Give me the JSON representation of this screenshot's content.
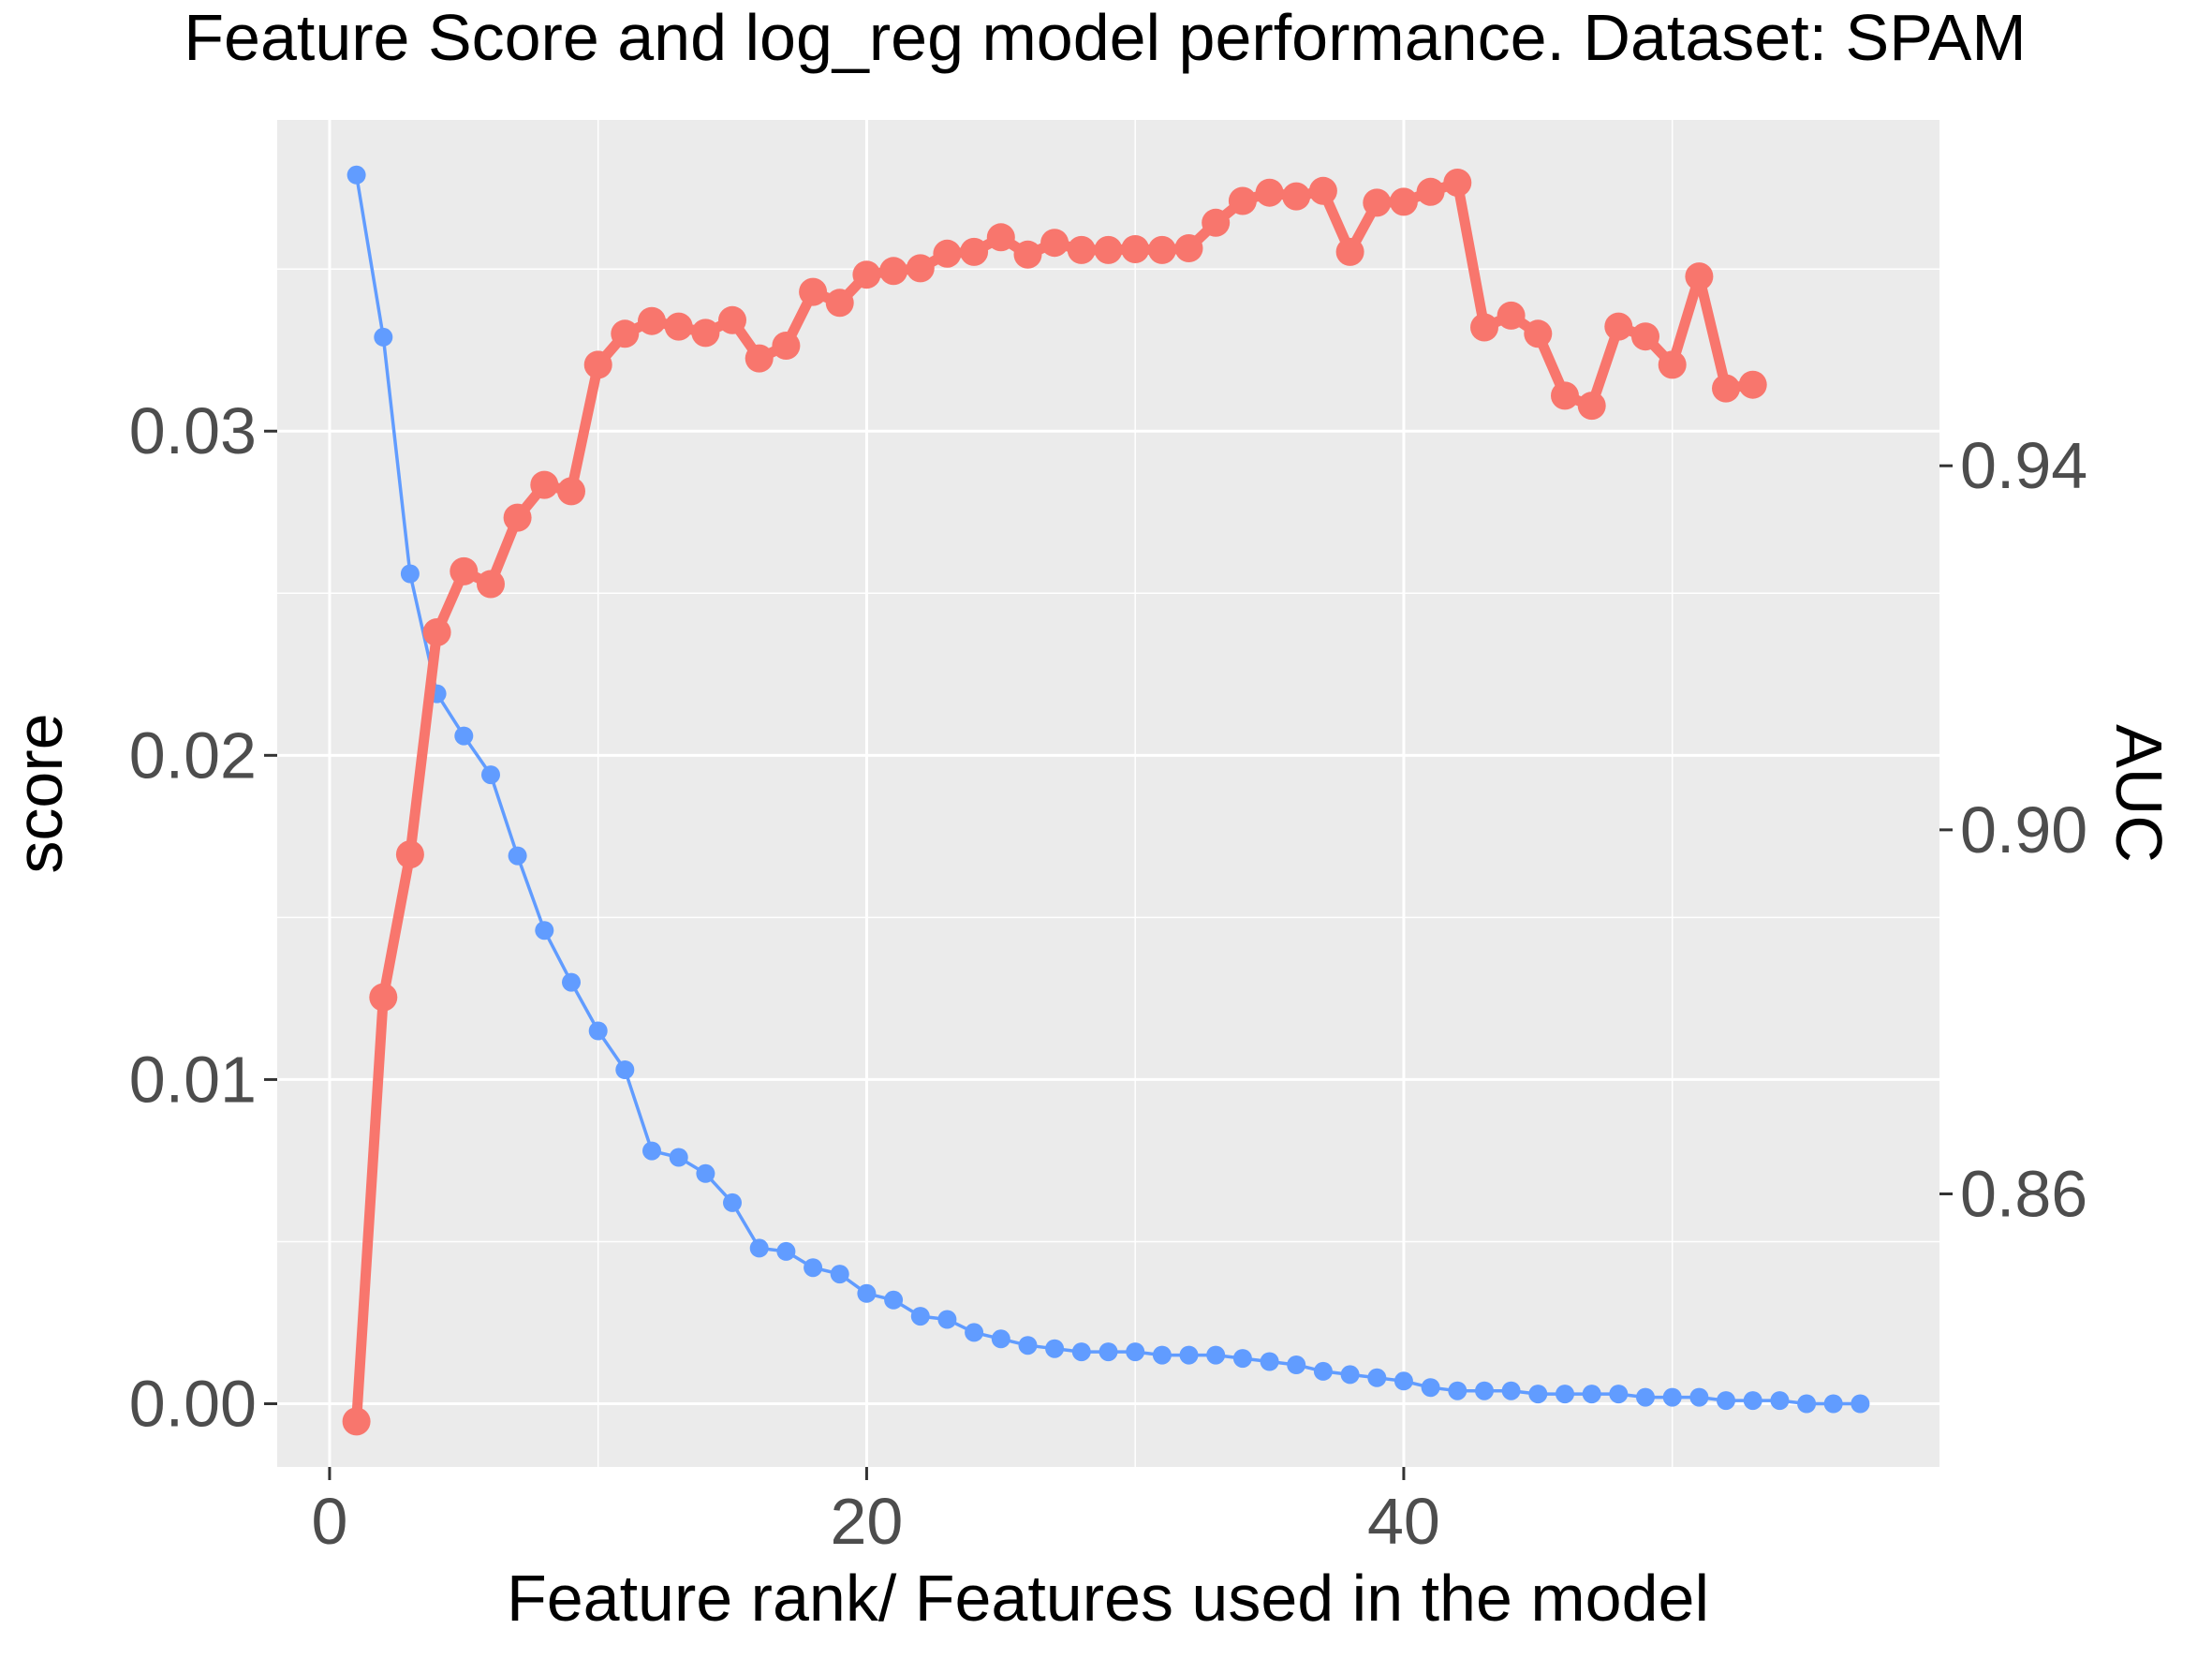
{
  "chart_data": {
    "type": "line",
    "title": "Feature Score and log_reg model performance. Dataset: SPAM",
    "xlabel": "Feature rank/ Features used in the model",
    "ylabel_left": "score",
    "ylabel_right": "AUC",
    "xlim": [
      -1.95,
      59.95
    ],
    "ylim_left": [
      -0.00195,
      0.0396
    ],
    "ylim_right": [
      0.83,
      0.978
    ],
    "x_ticks": [
      0,
      20,
      40
    ],
    "y_ticks_left": [
      0.0,
      0.01,
      0.02,
      0.03
    ],
    "y_tick_labels_left": [
      "0.00",
      "0.01",
      "0.02",
      "0.03"
    ],
    "y_ticks_right": [
      0.86,
      0.9,
      0.94
    ],
    "y_tick_labels_right": [
      "0.86",
      "0.90",
      "0.94"
    ],
    "grid": true,
    "legend": "none",
    "series": [
      {
        "axis": "left",
        "color": "#619cff",
        "x": [
          1,
          2,
          3,
          4,
          5,
          6,
          7,
          8,
          9,
          10,
          11,
          12,
          13,
          14,
          15,
          16,
          17,
          18,
          19,
          20,
          21,
          22,
          23,
          24,
          25,
          26,
          27,
          28,
          29,
          30,
          31,
          32,
          33,
          34,
          35,
          36,
          37,
          38,
          39,
          40,
          41,
          42,
          43,
          44,
          45,
          46,
          47,
          48,
          49,
          50,
          51,
          52,
          53,
          54,
          55,
          56,
          57
        ],
        "values": [
          0.0379,
          0.0329,
          0.0256,
          0.0219,
          0.0206,
          0.0194,
          0.0169,
          0.0146,
          0.013,
          0.0115,
          0.0103,
          0.0078,
          0.0076,
          0.0071,
          0.0062,
          0.0048,
          0.0047,
          0.0042,
          0.004,
          0.0034,
          0.0032,
          0.0027,
          0.0026,
          0.0022,
          0.002,
          0.0018,
          0.0017,
          0.0016,
          0.0016,
          0.0016,
          0.0015,
          0.0015,
          0.0015,
          0.0014,
          0.0013,
          0.0012,
          0.001,
          0.0009,
          0.0008,
          0.0007,
          0.0005,
          0.0004,
          0.0004,
          0.0004,
          0.0003,
          0.0003,
          0.0003,
          0.0003,
          0.0002,
          0.0002,
          0.0002,
          0.0001,
          0.0001,
          0.0001,
          0.0,
          0.0,
          0.0
        ]
      },
      {
        "axis": "right",
        "color": "#f8766d",
        "x": [
          1,
          2,
          3,
          4,
          5,
          6,
          7,
          8,
          9,
          10,
          11,
          12,
          13,
          14,
          15,
          16,
          17,
          18,
          19,
          20,
          21,
          22,
          23,
          24,
          25,
          26,
          27,
          28,
          29,
          30,
          31,
          32,
          33,
          34,
          35,
          36,
          37,
          38,
          39,
          40,
          41,
          42,
          43,
          44,
          45,
          46,
          47,
          48,
          49,
          50,
          51,
          52,
          53
        ],
        "values": [
          0.835,
          0.8816,
          0.8973,
          0.9217,
          0.9284,
          0.927,
          0.9343,
          0.9379,
          0.9372,
          0.9511,
          0.9545,
          0.9559,
          0.9553,
          0.9546,
          0.956,
          0.9518,
          0.9532,
          0.9591,
          0.9579,
          0.961,
          0.9614,
          0.9617,
          0.9633,
          0.9635,
          0.9651,
          0.9632,
          0.9645,
          0.9637,
          0.9637,
          0.9638,
          0.9637,
          0.9639,
          0.9667,
          0.9691,
          0.97,
          0.9696,
          0.9702,
          0.9635,
          0.9689,
          0.969,
          0.9701,
          0.9711,
          0.9552,
          0.9565,
          0.9545,
          0.9477,
          0.9466,
          0.9553,
          0.9542,
          0.9511,
          0.9608,
          0.9485,
          0.9489
        ]
      }
    ]
  }
}
